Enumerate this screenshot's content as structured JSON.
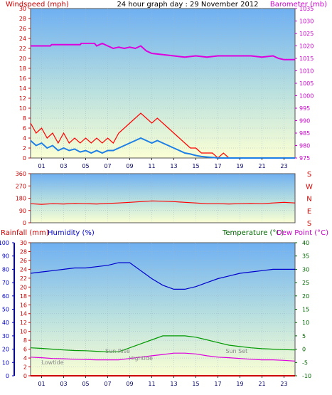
{
  "chart_data": [
    {
      "id": "wind_baro",
      "type": "line",
      "title": "24 hour graph day : 29 November 2012",
      "ylabel_left": "Windspeed (mph)",
      "ylabel_right": "Barometer (mb)",
      "left_ticks": [
        0,
        2,
        4,
        6,
        8,
        10,
        12,
        14,
        16,
        18,
        20,
        22,
        24,
        26,
        28,
        30
      ],
      "right_ticks": [
        975,
        980,
        985,
        990,
        995,
        1000,
        1005,
        1010,
        1015,
        1020,
        1025,
        1030,
        1035
      ],
      "x_ticks": [
        "01",
        "03",
        "05",
        "07",
        "09",
        "11",
        "13",
        "15",
        "17",
        "19",
        "21",
        "23"
      ],
      "xlim": [
        0,
        24
      ],
      "ylim_left": [
        0,
        30
      ],
      "ylim_right": [
        975,
        1035
      ],
      "colors": {
        "gust": "#ff0000",
        "wind": "#1e7fe6",
        "baro": "#dd00dd",
        "left_axis": "#cc0000",
        "right_axis": "#cc00cc"
      },
      "series": [
        {
          "key": "gust",
          "axis": "left",
          "values": [
            [
              0,
              7
            ],
            [
              0.5,
              5
            ],
            [
              1,
              6
            ],
            [
              1.5,
              4
            ],
            [
              2,
              5
            ],
            [
              2.5,
              3
            ],
            [
              3,
              5
            ],
            [
              3.5,
              3
            ],
            [
              4,
              4
            ],
            [
              4.5,
              3
            ],
            [
              5,
              4
            ],
            [
              5.5,
              3
            ],
            [
              6,
              4
            ],
            [
              6.5,
              3
            ],
            [
              7,
              4
            ],
            [
              7.5,
              3
            ],
            [
              8,
              5
            ],
            [
              8.5,
              6
            ],
            [
              9,
              7
            ],
            [
              9.5,
              8
            ],
            [
              10,
              9
            ],
            [
              10.5,
              8
            ],
            [
              11,
              7
            ],
            [
              11.5,
              8
            ],
            [
              12,
              7
            ],
            [
              12.5,
              6
            ],
            [
              13,
              5
            ],
            [
              13.5,
              4
            ],
            [
              14,
              3
            ],
            [
              14.5,
              2
            ],
            [
              15,
              2
            ],
            [
              15.5,
              1
            ],
            [
              16,
              1
            ],
            [
              16.5,
              1
            ],
            [
              17,
              0
            ],
            [
              17.5,
              1
            ],
            [
              18,
              0
            ],
            [
              19,
              0
            ],
            [
              20,
              0
            ],
            [
              21,
              0
            ],
            [
              22,
              0
            ],
            [
              23,
              0
            ],
            [
              24,
              0
            ]
          ]
        },
        {
          "key": "wind",
          "axis": "left",
          "values": [
            [
              0,
              3.5
            ],
            [
              0.5,
              2.5
            ],
            [
              1,
              3
            ],
            [
              1.5,
              2
            ],
            [
              2,
              2.5
            ],
            [
              2.5,
              1.5
            ],
            [
              3,
              2
            ],
            [
              3.5,
              1.5
            ],
            [
              4,
              1.8
            ],
            [
              4.5,
              1.2
            ],
            [
              5,
              1.5
            ],
            [
              5.5,
              1
            ],
            [
              6,
              1.5
            ],
            [
              6.5,
              1
            ],
            [
              7,
              1.5
            ],
            [
              7.5,
              1.5
            ],
            [
              8,
              2
            ],
            [
              8.5,
              2.5
            ],
            [
              9,
              3
            ],
            [
              9.5,
              3.5
            ],
            [
              10,
              4
            ],
            [
              10.5,
              3.5
            ],
            [
              11,
              3
            ],
            [
              11.5,
              3.5
            ],
            [
              12,
              3
            ],
            [
              12.5,
              2.5
            ],
            [
              13,
              2
            ],
            [
              13.5,
              1.5
            ],
            [
              14,
              1
            ],
            [
              14.5,
              0.8
            ],
            [
              15,
              0.5
            ],
            [
              15.5,
              0.3
            ],
            [
              16,
              0.2
            ],
            [
              16.5,
              0.1
            ],
            [
              17,
              0
            ],
            [
              24,
              0
            ]
          ]
        },
        {
          "key": "baro",
          "axis": "right",
          "values": [
            [
              0,
              1020
            ],
            [
              1.8,
              1020
            ],
            [
              1.9,
              1020.5
            ],
            [
              3,
              1020.5
            ],
            [
              4.5,
              1020.5
            ],
            [
              4.6,
              1021
            ],
            [
              5.8,
              1021
            ],
            [
              6,
              1020
            ],
            [
              6.5,
              1021
            ],
            [
              7,
              1020
            ],
            [
              7.5,
              1019
            ],
            [
              8,
              1019.5
            ],
            [
              8.5,
              1019
            ],
            [
              9,
              1019.5
            ],
            [
              9.5,
              1019
            ],
            [
              10,
              1020
            ],
            [
              10.5,
              1018
            ],
            [
              11,
              1017
            ],
            [
              12,
              1016.5
            ],
            [
              13,
              1016
            ],
            [
              14,
              1015.5
            ],
            [
              15,
              1016
            ],
            [
              16,
              1015.5
            ],
            [
              17,
              1016
            ],
            [
              18,
              1016
            ],
            [
              19,
              1016
            ],
            [
              20,
              1016
            ],
            [
              21,
              1015.5
            ],
            [
              22,
              1016
            ],
            [
              22.5,
              1015
            ],
            [
              23,
              1014.5
            ],
            [
              24,
              1014.5
            ]
          ]
        }
      ]
    },
    {
      "id": "direction",
      "type": "line",
      "left_ticks": [
        0,
        90,
        180,
        270,
        360
      ],
      "right_ticks": [
        "S",
        "E",
        "N",
        "W",
        "S"
      ],
      "xlim": [
        0,
        24
      ],
      "ylim": [
        0,
        360
      ],
      "colors": {
        "dir": "#ff0000",
        "left_axis": "#cc0000",
        "right_axis": "#cc0000"
      },
      "series": [
        {
          "key": "dir",
          "values": [
            [
              0,
              140
            ],
            [
              1,
              135
            ],
            [
              2,
              140
            ],
            [
              3,
              138
            ],
            [
              4,
              142
            ],
            [
              5,
              140
            ],
            [
              6,
              138
            ],
            [
              7,
              142
            ],
            [
              8,
              145
            ],
            [
              9,
              150
            ],
            [
              10,
              155
            ],
            [
              11,
              160
            ],
            [
              12,
              158
            ],
            [
              13,
              155
            ],
            [
              14,
              150
            ],
            [
              15,
              145
            ],
            [
              16,
              140
            ],
            [
              17,
              140
            ],
            [
              18,
              138
            ],
            [
              19,
              140
            ],
            [
              20,
              142
            ],
            [
              21,
              140
            ],
            [
              22,
              145
            ],
            [
              23,
              150
            ],
            [
              24,
              145
            ]
          ]
        }
      ]
    },
    {
      "id": "rain_temp",
      "type": "line",
      "ylabel_left_rain": "Rainfall (mm)",
      "ylabel_left_hum": "Humidity (%)",
      "ylabel_right_temp": "Temperature (°C)",
      "ylabel_right_dew": "Dew Point (°C)",
      "humidity_ticks": [
        0,
        10,
        20,
        30,
        40,
        50,
        60,
        70,
        80,
        90,
        100
      ],
      "rain_ticks": [
        0,
        2,
        4,
        6,
        8,
        10,
        12,
        14,
        16,
        18,
        20,
        22,
        24,
        26,
        28,
        30
      ],
      "temp_ticks": [
        -10,
        -5,
        0,
        5,
        10,
        15,
        20,
        25,
        30,
        35,
        40
      ],
      "x_ticks": [
        "01",
        "03",
        "05",
        "07",
        "09",
        "11",
        "13",
        "15",
        "17",
        "19",
        "21",
        "23"
      ],
      "xlim": [
        0,
        24
      ],
      "ylim_humidity": [
        0,
        100
      ],
      "ylim_rain": [
        0,
        30
      ],
      "ylim_temp": [
        -10,
        40
      ],
      "colors": {
        "humidity": "#0000cc",
        "temp": "#009900",
        "dew": "#dd00dd",
        "rain": "#cc0000",
        "temp_axis": "#006600",
        "dew_axis": "#cc00cc",
        "hum_axis": "#0000cc"
      },
      "annotations": [
        "Sun Rise",
        "Sun Set",
        "Hightide",
        "Lowtide"
      ],
      "series": [
        {
          "key": "humidity",
          "axis": "humidity",
          "values": [
            [
              0,
              77
            ],
            [
              1,
              78
            ],
            [
              2,
              79
            ],
            [
              3,
              80
            ],
            [
              4,
              81
            ],
            [
              5,
              81
            ],
            [
              6,
              82
            ],
            [
              7,
              83
            ],
            [
              8,
              85
            ],
            [
              9,
              85
            ],
            [
              10,
              79
            ],
            [
              11,
              73
            ],
            [
              12,
              68
            ],
            [
              13,
              65
            ],
            [
              14,
              65
            ],
            [
              15,
              67
            ],
            [
              16,
              70
            ],
            [
              17,
              73
            ],
            [
              18,
              75
            ],
            [
              19,
              77
            ],
            [
              20,
              78
            ],
            [
              21,
              79
            ],
            [
              22,
              80
            ],
            [
              23,
              80
            ],
            [
              24,
              80
            ]
          ]
        },
        {
          "key": "temp",
          "axis": "temp",
          "values": [
            [
              0,
              0.5
            ],
            [
              1,
              0.3
            ],
            [
              2,
              0
            ],
            [
              3,
              -0.3
            ],
            [
              4,
              -0.5
            ],
            [
              5,
              -0.6
            ],
            [
              6,
              -0.8
            ],
            [
              7,
              -1
            ],
            [
              8,
              -1
            ],
            [
              9,
              0.5
            ],
            [
              10,
              2
            ],
            [
              11,
              3.5
            ],
            [
              12,
              5
            ],
            [
              13,
              5
            ],
            [
              14,
              5
            ],
            [
              15,
              4.5
            ],
            [
              16,
              3.5
            ],
            [
              17,
              2.5
            ],
            [
              18,
              1.5
            ],
            [
              19,
              1
            ],
            [
              20,
              0.5
            ],
            [
              21,
              0.2
            ],
            [
              22,
              0
            ],
            [
              23,
              -0.2
            ],
            [
              24,
              -0.3
            ]
          ]
        },
        {
          "key": "dew",
          "axis": "temp",
          "values": [
            [
              0,
              -3
            ],
            [
              1,
              -3.2
            ],
            [
              2,
              -3.5
            ],
            [
              3,
              -3.6
            ],
            [
              4,
              -3.8
            ],
            [
              5,
              -3.9
            ],
            [
              6,
              -4
            ],
            [
              7,
              -4
            ],
            [
              8,
              -4
            ],
            [
              9,
              -3.5
            ],
            [
              10,
              -3
            ],
            [
              11,
              -2.5
            ],
            [
              12,
              -2
            ],
            [
              13,
              -1.5
            ],
            [
              14,
              -1.5
            ],
            [
              15,
              -1.8
            ],
            [
              16,
              -2.5
            ],
            [
              17,
              -3
            ],
            [
              18,
              -3.2
            ],
            [
              19,
              -3.5
            ],
            [
              20,
              -3.8
            ],
            [
              21,
              -4
            ],
            [
              22,
              -4
            ],
            [
              23,
              -4.2
            ],
            [
              24,
              -4.5
            ]
          ]
        },
        {
          "key": "rain",
          "axis": "rain",
          "values": [
            [
              0,
              0
            ],
            [
              24,
              0
            ]
          ]
        }
      ]
    }
  ]
}
